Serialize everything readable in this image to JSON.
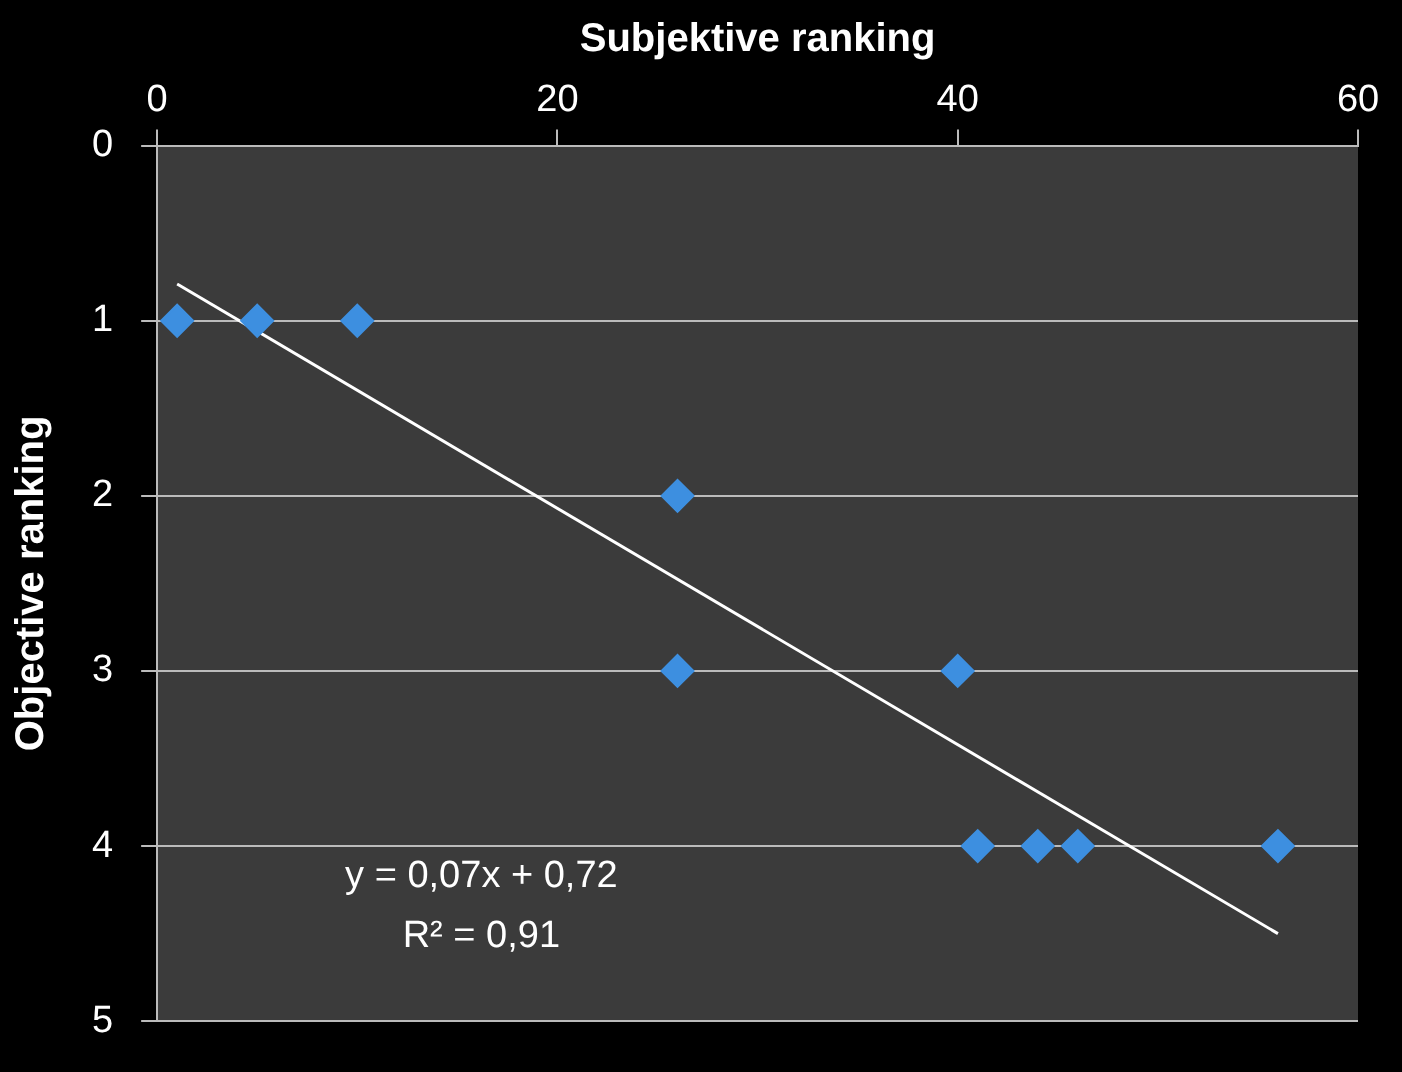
{
  "chart_data": {
    "type": "scatter",
    "xlabel": "Subjektive ranking",
    "ylabel": "Objective ranking",
    "xlim": [
      0,
      60
    ],
    "xticks": [
      0,
      20,
      40,
      60
    ],
    "ylim": [
      5,
      0
    ],
    "yticks": [
      0,
      1,
      2,
      3,
      4,
      5
    ],
    "grid": "y",
    "legend": false,
    "marker": "diamond",
    "series": [
      {
        "color": "#3d8fe0",
        "x": [
          1,
          5,
          10,
          26,
          26,
          40,
          41,
          44,
          46,
          56
        ],
        "values": [
          1,
          1,
          1,
          2,
          3,
          3,
          4,
          4,
          4,
          4
        ]
      },
      {
        "type": "line",
        "color": "#ffffff",
        "x": [
          1,
          56
        ],
        "values": [
          0.79,
          4.5
        ],
        "marker": "none"
      }
    ],
    "annotations": [
      "y = 0,07x + 0,72",
      "R² = 0,91"
    ]
  }
}
